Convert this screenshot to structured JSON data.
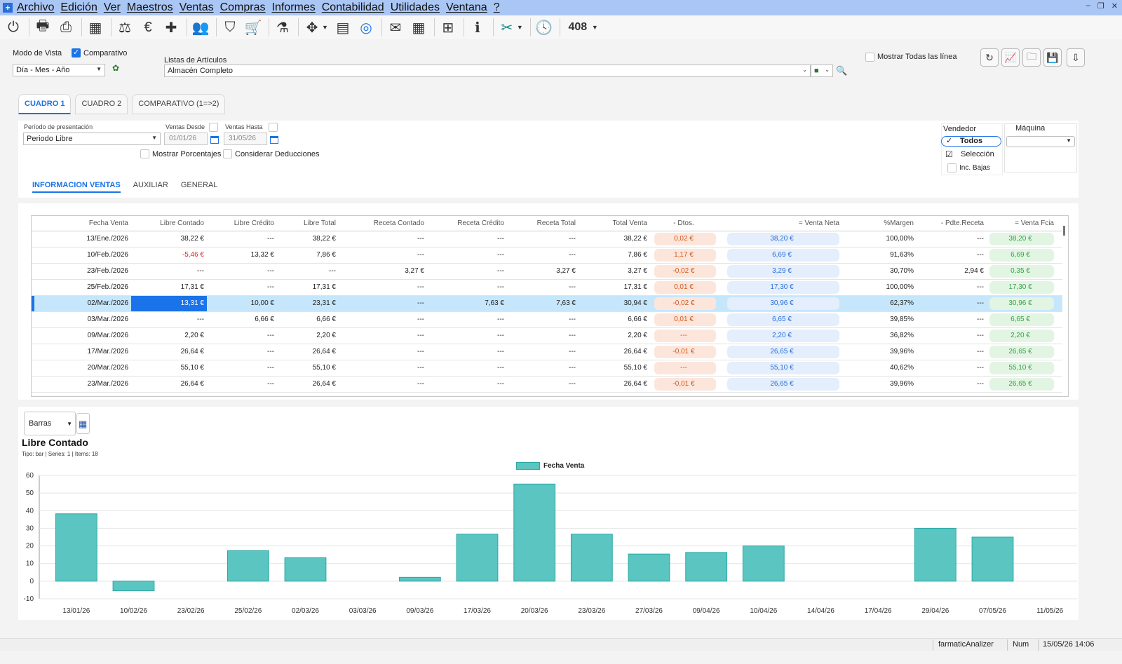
{
  "menu": [
    "Archivo",
    "Edición",
    "Ver",
    "Maestros",
    "Ventas",
    "Compras",
    "Informes",
    "Contabilidad",
    "Utilidades",
    "Ventana",
    "?"
  ],
  "toolbar": {
    "icons": [
      "power-icon",
      "printer-icon",
      "printer-alt-icon",
      "calculator-icon",
      "scale-icon",
      "euro-icon",
      "medkit-icon",
      "people-icon",
      "basket-icon",
      "cart-icon",
      "flask-icon",
      "bug-icon",
      "catalog-icon",
      "orbit-icon",
      "mail-icon",
      "calendar-grid-icon",
      "tree-icon",
      "info-icon",
      "shuffle-icon",
      "clock-icon"
    ],
    "code_label": "408"
  },
  "view": {
    "mode_label": "Modo de Vista",
    "comparative_label": "Comparativo",
    "comparative_checked": true,
    "granularity": "Día - Mes - Año",
    "lists_label": "Listas de Artículos",
    "list_value": "Almacén Completo",
    "show_all_label": "Mostrar Todas las línea"
  },
  "top_tabs": [
    "CUADRO 1",
    "CUADRO 2",
    "COMPARATIVO (1=>2)"
  ],
  "filters": {
    "period_label": "Período de presentación",
    "period_value": "Periodo Libre",
    "from_label": "Ventas Desde",
    "from_value": "01/01/26",
    "to_label": "Ventas Hasta",
    "to_value": "31/05/26",
    "show_pct_label": "Mostrar Porcentajes",
    "deductions_label": "Considerar Deducciones",
    "vendor_label": "Vendedor",
    "vendor_all": "Todos",
    "vendor_selection": "Selección",
    "inc_bajas": "Inc. Bajas",
    "machine_label": "Máquina"
  },
  "sub_tabs": [
    "INFORMACION VENTAS",
    "AUXILIAR",
    "GENERAL"
  ],
  "table": {
    "headers": [
      "Fecha Venta",
      "Libre Contado",
      "Libre Crédito",
      "Libre Total",
      "Receta Contado",
      "Receta Crédito",
      "Receta Total",
      "Total Venta",
      "- Dtos.",
      "= Venta Neta",
      "%Margen",
      "- Pdte.Receta",
      "= Venta Fcia"
    ],
    "rows": [
      [
        "13/Ene./2026",
        "38,22 €",
        "---",
        "38,22 €",
        "---",
        "---",
        "---",
        "38,22 €",
        "0,02 €",
        "38,20 €",
        "100,00%",
        "---",
        "38,20 €"
      ],
      [
        "10/Feb./2026",
        "-5,46 €",
        "13,32 €",
        "7,86 €",
        "---",
        "---",
        "---",
        "7,86 €",
        "1,17 €",
        "6,69 €",
        "91,63%",
        "---",
        "6,69 €"
      ],
      [
        "23/Feb./2026",
        "---",
        "---",
        "---",
        "3,27 €",
        "---",
        "3,27 €",
        "3,27 €",
        "-0,02 €",
        "3,29 €",
        "30,70%",
        "2,94 €",
        "0,35 €"
      ],
      [
        "25/Feb./2026",
        "17,31 €",
        "---",
        "17,31 €",
        "---",
        "---",
        "---",
        "17,31 €",
        "0,01 €",
        "17,30 €",
        "100,00%",
        "---",
        "17,30 €"
      ],
      [
        "02/Mar./2026",
        "13,31 €",
        "10,00 €",
        "23,31 €",
        "---",
        "7,63 €",
        "7,63 €",
        "30,94 €",
        "-0,02 €",
        "30,96 €",
        "62,37%",
        "---",
        "30,96 €"
      ],
      [
        "03/Mar./2026",
        "---",
        "6,66 €",
        "6,66 €",
        "---",
        "---",
        "---",
        "6,66 €",
        "0,01 €",
        "6,65 €",
        "39,85%",
        "---",
        "6,65 €"
      ],
      [
        "09/Mar./2026",
        "2,20 €",
        "---",
        "2,20 €",
        "---",
        "---",
        "---",
        "2,20 €",
        "---",
        "2,20 €",
        "36,82%",
        "---",
        "2,20 €"
      ],
      [
        "17/Mar./2026",
        "26,64 €",
        "---",
        "26,64 €",
        "---",
        "---",
        "---",
        "26,64 €",
        "-0,01 €",
        "26,65 €",
        "39,96%",
        "---",
        "26,65 €"
      ],
      [
        "20/Mar./2026",
        "55,10 €",
        "---",
        "55,10 €",
        "---",
        "---",
        "---",
        "55,10 €",
        "---",
        "55,10 €",
        "40,62%",
        "---",
        "55,10 €"
      ],
      [
        "23/Mar./2026",
        "26,64 €",
        "---",
        "26,64 €",
        "---",
        "---",
        "---",
        "26,64 €",
        "-0,01 €",
        "26,65 €",
        "39,96%",
        "---",
        "26,65 €"
      ]
    ],
    "selected_row": 4
  },
  "chart_ui": {
    "type_select": "Barras"
  },
  "chart_data": {
    "type": "bar",
    "title": "Libre Contado",
    "subtitle": "Tipo: bar | Series: 1 | Items: 18",
    "categories": [
      "13/01/26",
      "10/02/26",
      "23/02/26",
      "25/02/26",
      "02/03/26",
      "03/03/26",
      "09/03/26",
      "17/03/26",
      "20/03/26",
      "23/03/26",
      "27/03/26",
      "09/04/26",
      "10/04/26",
      "14/04/26",
      "17/04/26",
      "29/04/26",
      "07/05/26",
      "11/05/26"
    ],
    "series": [
      {
        "name": "Fecha Venta",
        "values": [
          38.22,
          -5.46,
          0,
          17.31,
          13.31,
          0,
          2.2,
          26.64,
          55.1,
          26.64,
          15.4,
          16.3,
          20.0,
          0,
          0,
          30.0,
          25.0,
          0
        ]
      }
    ],
    "ylim": [
      -10,
      60
    ],
    "yticks": [
      -10,
      0,
      10,
      20,
      30,
      40,
      50,
      60
    ],
    "grid": true,
    "legend": "top-center",
    "colors": {
      "fill": "#5bc5c2",
      "stroke": "#2aa8a4"
    }
  },
  "status": {
    "app": "farmaticAnalizer",
    "num": "Num",
    "datetime": "15/05/26 14:06"
  }
}
